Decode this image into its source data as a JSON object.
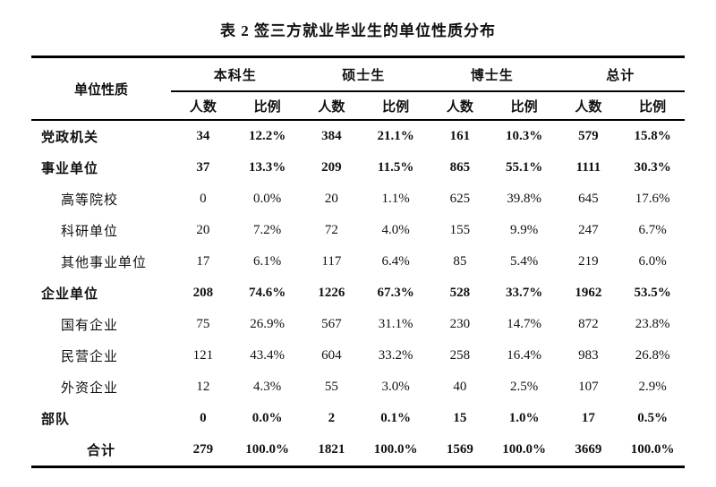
{
  "table": {
    "title": "表 2 签三方就业毕业生的单位性质分布",
    "header": {
      "unit": "单位性质",
      "groups": [
        "本科生",
        "硕士生",
        "博士生",
        "总计"
      ],
      "count_label": "人数",
      "ratio_label": "比例"
    },
    "rows": [
      {
        "label": "党政机关",
        "level": "top",
        "cells": [
          "34",
          "12.2%",
          "384",
          "21.1%",
          "161",
          "10.3%",
          "579",
          "15.8%"
        ]
      },
      {
        "label": "事业单位",
        "level": "top",
        "cells": [
          "37",
          "13.3%",
          "209",
          "11.5%",
          "865",
          "55.1%",
          "1111",
          "30.3%"
        ]
      },
      {
        "label": "高等院校",
        "level": "sub",
        "cells": [
          "0",
          "0.0%",
          "20",
          "1.1%",
          "625",
          "39.8%",
          "645",
          "17.6%"
        ]
      },
      {
        "label": "科研单位",
        "level": "sub",
        "cells": [
          "20",
          "7.2%",
          "72",
          "4.0%",
          "155",
          "9.9%",
          "247",
          "6.7%"
        ]
      },
      {
        "label": "其他事业单位",
        "level": "sub",
        "cells": [
          "17",
          "6.1%",
          "117",
          "6.4%",
          "85",
          "5.4%",
          "219",
          "6.0%"
        ]
      },
      {
        "label": "企业单位",
        "level": "top",
        "cells": [
          "208",
          "74.6%",
          "1226",
          "67.3%",
          "528",
          "33.7%",
          "1962",
          "53.5%"
        ]
      },
      {
        "label": "国有企业",
        "level": "sub",
        "cells": [
          "75",
          "26.9%",
          "567",
          "31.1%",
          "230",
          "14.7%",
          "872",
          "23.8%"
        ]
      },
      {
        "label": "民营企业",
        "level": "sub",
        "cells": [
          "121",
          "43.4%",
          "604",
          "33.2%",
          "258",
          "16.4%",
          "983",
          "26.8%"
        ]
      },
      {
        "label": "外资企业",
        "level": "sub",
        "cells": [
          "12",
          "4.3%",
          "55",
          "3.0%",
          "40",
          "2.5%",
          "107",
          "2.9%"
        ]
      },
      {
        "label": "部队",
        "level": "top",
        "cells": [
          "0",
          "0.0%",
          "2",
          "0.1%",
          "15",
          "1.0%",
          "17",
          "0.5%"
        ]
      },
      {
        "label": "合计",
        "level": "total",
        "cells": [
          "279",
          "100.0%",
          "1821",
          "100.0%",
          "1569",
          "100.0%",
          "3669",
          "100.0%"
        ]
      }
    ],
    "colors": {
      "text": "#111111",
      "border": "#000000",
      "background": "#ffffff"
    }
  }
}
